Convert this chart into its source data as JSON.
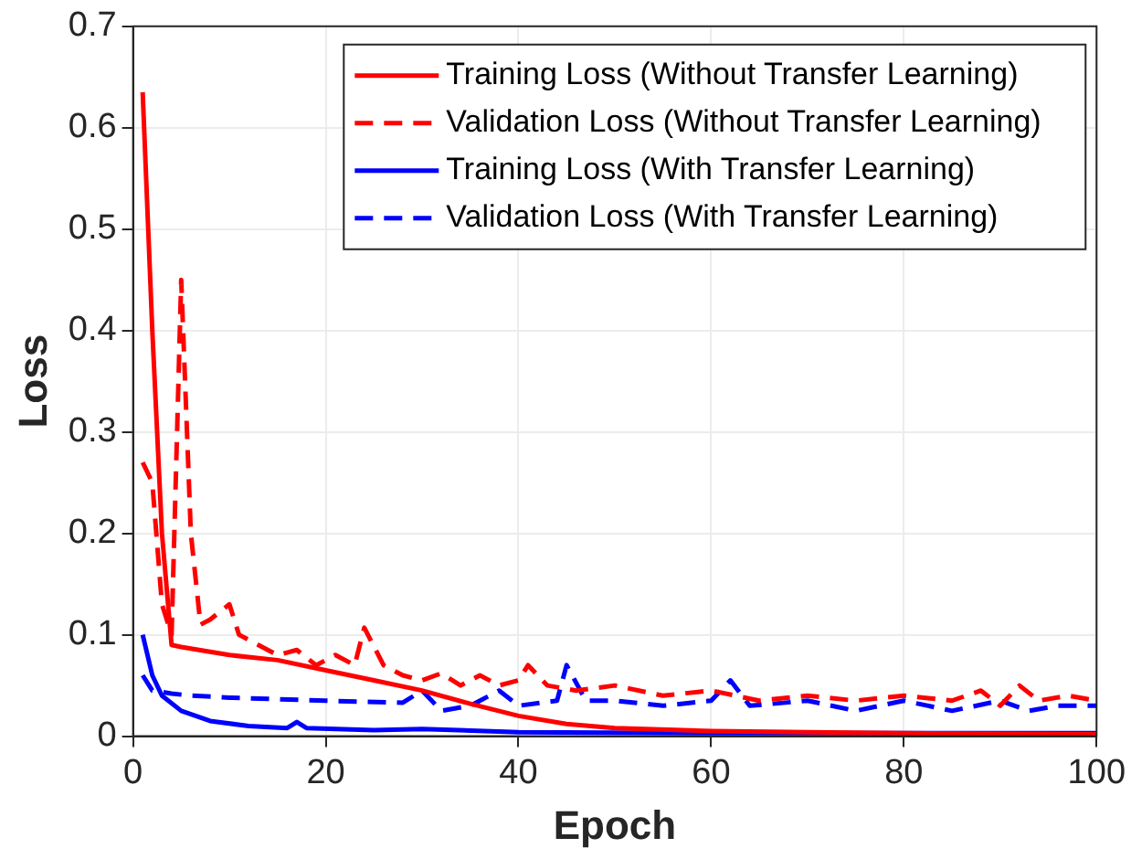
{
  "chart_data": {
    "type": "line",
    "xlabel": "Epoch",
    "ylabel": "Loss",
    "xlim": [
      0,
      100
    ],
    "xticks": [
      0,
      20,
      40,
      60,
      80,
      100
    ],
    "ylim": [
      0,
      0.7
    ],
    "yticks": [
      0,
      0.1,
      0.2,
      0.3,
      0.4,
      0.5,
      0.6,
      0.7
    ],
    "grid": true,
    "legend": "top right",
    "marker": "none",
    "series": [
      {
        "name": "Training Loss (Without Transfer Learning)",
        "color": "#ff0000",
        "line_style": "solid",
        "x": [
          1,
          2,
          3,
          4,
          5,
          10,
          15,
          20,
          25,
          30,
          35,
          40,
          45,
          50,
          60,
          70,
          80,
          100
        ],
        "values": [
          0.635,
          0.4,
          0.2,
          0.09,
          0.088,
          0.08,
          0.075,
          0.065,
          0.055,
          0.045,
          0.032,
          0.02,
          0.012,
          0.008,
          0.005,
          0.004,
          0.003,
          0.002
        ]
      },
      {
        "name": "Validation Loss (Without Transfer Learning)",
        "color": "#ff0000",
        "line_style": "dashed",
        "x": [
          1,
          2,
          3,
          4,
          5,
          6,
          7,
          8,
          10,
          11,
          13,
          15,
          17,
          19,
          21,
          23,
          24,
          26,
          28,
          30,
          32,
          34,
          36,
          38,
          40,
          41,
          43,
          46,
          50,
          55,
          60,
          65,
          70,
          75,
          80,
          85,
          88,
          90,
          92,
          94,
          97,
          100
        ],
        "values": [
          0.27,
          0.25,
          0.13,
          0.1,
          0.45,
          0.2,
          0.11,
          0.115,
          0.13,
          0.1,
          0.09,
          0.08,
          0.085,
          0.07,
          0.08,
          0.07,
          0.107,
          0.07,
          0.06,
          0.055,
          0.062,
          0.05,
          0.06,
          0.05,
          0.055,
          0.07,
          0.05,
          0.045,
          0.05,
          0.04,
          0.045,
          0.035,
          0.04,
          0.035,
          0.04,
          0.035,
          0.045,
          0.03,
          0.05,
          0.035,
          0.04,
          0.035
        ]
      },
      {
        "name": "Training Loss (With Transfer Learning)",
        "color": "#0000ff",
        "line_style": "solid",
        "x": [
          1,
          2,
          3,
          5,
          8,
          12,
          16,
          17,
          18,
          25,
          30,
          40,
          60,
          100
        ],
        "values": [
          0.1,
          0.06,
          0.04,
          0.025,
          0.015,
          0.01,
          0.008,
          0.014,
          0.008,
          0.006,
          0.007,
          0.004,
          0.003,
          0.003
        ]
      },
      {
        "name": "Validation Loss (With Transfer Learning)",
        "color": "#0000ff",
        "line_style": "dashed",
        "x": [
          1,
          2,
          4,
          6,
          10,
          20,
          28,
          30,
          32,
          35,
          38,
          40,
          44,
          45,
          47,
          50,
          55,
          60,
          62,
          64,
          70,
          75,
          80,
          85,
          90,
          93,
          96,
          100
        ],
        "values": [
          0.06,
          0.045,
          0.042,
          0.04,
          0.038,
          0.035,
          0.033,
          0.045,
          0.025,
          0.03,
          0.045,
          0.03,
          0.035,
          0.07,
          0.035,
          0.035,
          0.03,
          0.035,
          0.055,
          0.03,
          0.035,
          0.025,
          0.035,
          0.025,
          0.035,
          0.025,
          0.03,
          0.03
        ]
      }
    ]
  }
}
